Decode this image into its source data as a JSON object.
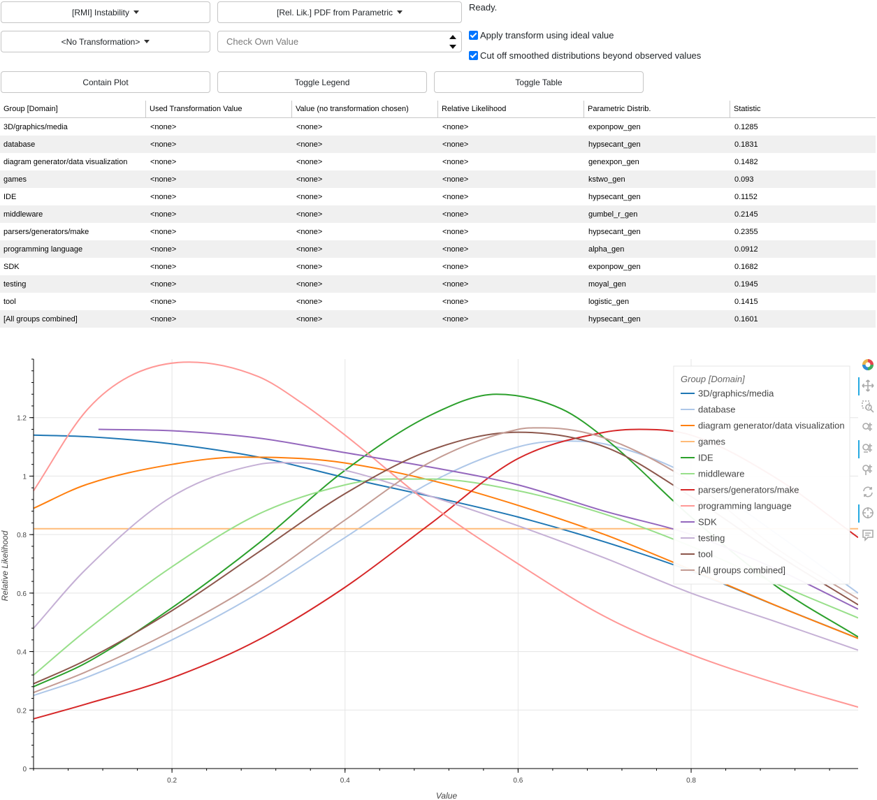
{
  "controls": {
    "metric_select": "[RMI] Instability",
    "plot_select": "[Rel. Lik.] PDF from Parametric",
    "transform_select": "<No Transformation>",
    "own_value_placeholder": "Check Own Value",
    "status": "Ready.",
    "apply_transform_label": "Apply transform using ideal value",
    "cutoff_label": "Cut off smoothed distributions beyond observed values",
    "contain_plot": "Contain Plot",
    "toggle_legend": "Toggle Legend",
    "toggle_table": "Toggle Table"
  },
  "table": {
    "headers": [
      "Group [Domain]",
      "Used Transformation Value",
      "Value (no transformation chosen)",
      "Relative Likelihood",
      "Parametric Distrib.",
      "Statistic"
    ],
    "rows": [
      [
        "3D/graphics/media",
        "<none>",
        "<none>",
        "<none>",
        "exponpow_gen",
        "0.1285"
      ],
      [
        "database",
        "<none>",
        "<none>",
        "<none>",
        "hypsecant_gen",
        "0.1831"
      ],
      [
        "diagram generator/data visualization",
        "<none>",
        "<none>",
        "<none>",
        "genexpon_gen",
        "0.1482"
      ],
      [
        "games",
        "<none>",
        "<none>",
        "<none>",
        "kstwo_gen",
        "0.093"
      ],
      [
        "IDE",
        "<none>",
        "<none>",
        "<none>",
        "hypsecant_gen",
        "0.1152"
      ],
      [
        "middleware",
        "<none>",
        "<none>",
        "<none>",
        "gumbel_r_gen",
        "0.2145"
      ],
      [
        "parsers/generators/make",
        "<none>",
        "<none>",
        "<none>",
        "hypsecant_gen",
        "0.2355"
      ],
      [
        "programming language",
        "<none>",
        "<none>",
        "<none>",
        "alpha_gen",
        "0.0912"
      ],
      [
        "SDK",
        "<none>",
        "<none>",
        "<none>",
        "exponpow_gen",
        "0.1682"
      ],
      [
        "testing",
        "<none>",
        "<none>",
        "<none>",
        "moyal_gen",
        "0.1945"
      ],
      [
        "tool",
        "<none>",
        "<none>",
        "<none>",
        "logistic_gen",
        "0.1415"
      ],
      [
        "[All groups combined]",
        "<none>",
        "<none>",
        "<none>",
        "hypsecant_gen",
        "0.1601"
      ]
    ]
  },
  "chart_data": {
    "type": "line",
    "title": "",
    "xlabel": "Value",
    "ylabel": "Relative Likelihood",
    "xlim": [
      0.04,
      0.993
    ],
    "ylim": [
      0,
      1.4
    ],
    "x_ticks": [
      "0.2",
      "0.4",
      "0.6",
      "0.8"
    ],
    "y_ticks": [
      "0",
      "0.2",
      "0.4",
      "0.6",
      "0.8",
      "1",
      "1.2"
    ],
    "legend_title": "Group [Domain]",
    "legend_position": "top-right",
    "series": [
      {
        "name": "3D/graphics/media",
        "color": "#1f77b4",
        "x": [
          0.04,
          0.1,
          0.2,
          0.3,
          0.4,
          0.5,
          0.6,
          0.7,
          0.8,
          0.9,
          0.993
        ],
        "y": [
          1.14,
          1.135,
          1.11,
          1.065,
          0.995,
          0.93,
          0.86,
          0.775,
          0.675,
          0.555,
          0.445
        ]
      },
      {
        "name": "database",
        "color": "#aec7e8",
        "x": [
          0.04,
          0.1,
          0.2,
          0.3,
          0.4,
          0.5,
          0.6,
          0.65,
          0.7,
          0.8,
          0.9,
          0.993
        ],
        "y": [
          0.25,
          0.31,
          0.44,
          0.6,
          0.79,
          0.98,
          1.1,
          1.12,
          1.11,
          1.0,
          0.8,
          0.6
        ]
      },
      {
        "name": "diagram generator/data visualization",
        "color": "#ff7f0e",
        "x": [
          0.04,
          0.1,
          0.2,
          0.28,
          0.35,
          0.4,
          0.5,
          0.6,
          0.7,
          0.8,
          0.9,
          0.993
        ],
        "y": [
          0.89,
          0.97,
          1.04,
          1.065,
          1.06,
          1.045,
          0.985,
          0.9,
          0.8,
          0.68,
          0.555,
          0.445
        ]
      },
      {
        "name": "games",
        "color": "#ffbb78",
        "x": [
          0.04,
          0.993
        ],
        "y": [
          0.82,
          0.82
        ]
      },
      {
        "name": "IDE",
        "color": "#2ca02c",
        "x": [
          0.04,
          0.1,
          0.2,
          0.3,
          0.4,
          0.5,
          0.575,
          0.65,
          0.7,
          0.8,
          0.9,
          0.993
        ],
        "y": [
          0.28,
          0.36,
          0.55,
          0.77,
          1.02,
          1.21,
          1.28,
          1.23,
          1.13,
          0.86,
          0.62,
          0.45
        ]
      },
      {
        "name": "middleware",
        "color": "#98df8a",
        "x": [
          0.04,
          0.1,
          0.2,
          0.3,
          0.4,
          0.45,
          0.5,
          0.6,
          0.7,
          0.8,
          0.9,
          0.993
        ],
        "y": [
          0.32,
          0.47,
          0.69,
          0.87,
          0.97,
          0.99,
          0.99,
          0.95,
          0.87,
          0.76,
          0.63,
          0.515
        ]
      },
      {
        "name": "parsers/generators/make",
        "color": "#d62728",
        "x": [
          0.04,
          0.1,
          0.2,
          0.3,
          0.4,
          0.5,
          0.6,
          0.7,
          0.74,
          0.8,
          0.9,
          0.993
        ],
        "y": [
          0.17,
          0.22,
          0.31,
          0.44,
          0.62,
          0.84,
          1.06,
          1.15,
          1.16,
          1.14,
          0.99,
          0.79
        ]
      },
      {
        "name": "programming language",
        "color": "#ff9896",
        "x": [
          0.04,
          0.1,
          0.15,
          0.22,
          0.3,
          0.35,
          0.4,
          0.5,
          0.6,
          0.7,
          0.8,
          0.9,
          0.993
        ],
        "y": [
          0.95,
          1.22,
          1.34,
          1.39,
          1.34,
          1.25,
          1.14,
          0.9,
          0.7,
          0.52,
          0.39,
          0.29,
          0.21
        ]
      },
      {
        "name": "SDK",
        "color": "#9467bd",
        "x": [
          0.115,
          0.2,
          0.3,
          0.4,
          0.5,
          0.6,
          0.7,
          0.8,
          0.9,
          0.993
        ],
        "y": [
          1.16,
          1.155,
          1.13,
          1.08,
          1.03,
          0.97,
          0.88,
          0.8,
          0.68,
          0.545
        ]
      },
      {
        "name": "testing",
        "color": "#c5b0d5",
        "x": [
          0.04,
          0.1,
          0.2,
          0.3,
          0.35,
          0.4,
          0.5,
          0.6,
          0.7,
          0.8,
          0.9,
          0.993
        ],
        "y": [
          0.48,
          0.68,
          0.93,
          1.04,
          1.045,
          1.02,
          0.93,
          0.83,
          0.72,
          0.6,
          0.5,
          0.405
        ]
      },
      {
        "name": "tool",
        "color": "#8c564b",
        "x": [
          0.04,
          0.1,
          0.2,
          0.3,
          0.4,
          0.5,
          0.6,
          0.7,
          0.8,
          0.9,
          0.993
        ],
        "y": [
          0.29,
          0.37,
          0.54,
          0.74,
          0.94,
          1.09,
          1.15,
          1.1,
          0.93,
          0.73,
          0.56
        ]
      },
      {
        "name": "[All groups combined]",
        "color": "#c49c94",
        "x": [
          0.04,
          0.1,
          0.2,
          0.3,
          0.4,
          0.5,
          0.6,
          0.63,
          0.7,
          0.8,
          0.9,
          0.993
        ],
        "y": [
          0.26,
          0.33,
          0.47,
          0.64,
          0.85,
          1.05,
          1.16,
          1.165,
          1.13,
          0.98,
          0.75,
          0.58
        ]
      }
    ]
  },
  "toolbar": [
    "bokeh-logo-icon",
    "pan-icon",
    "box-zoom-icon",
    "wheel-zoom-icon",
    "x-wheel-zoom-icon",
    "y-wheel-zoom-icon",
    "reset-icon",
    "crosshair-icon",
    "hover-icon"
  ]
}
